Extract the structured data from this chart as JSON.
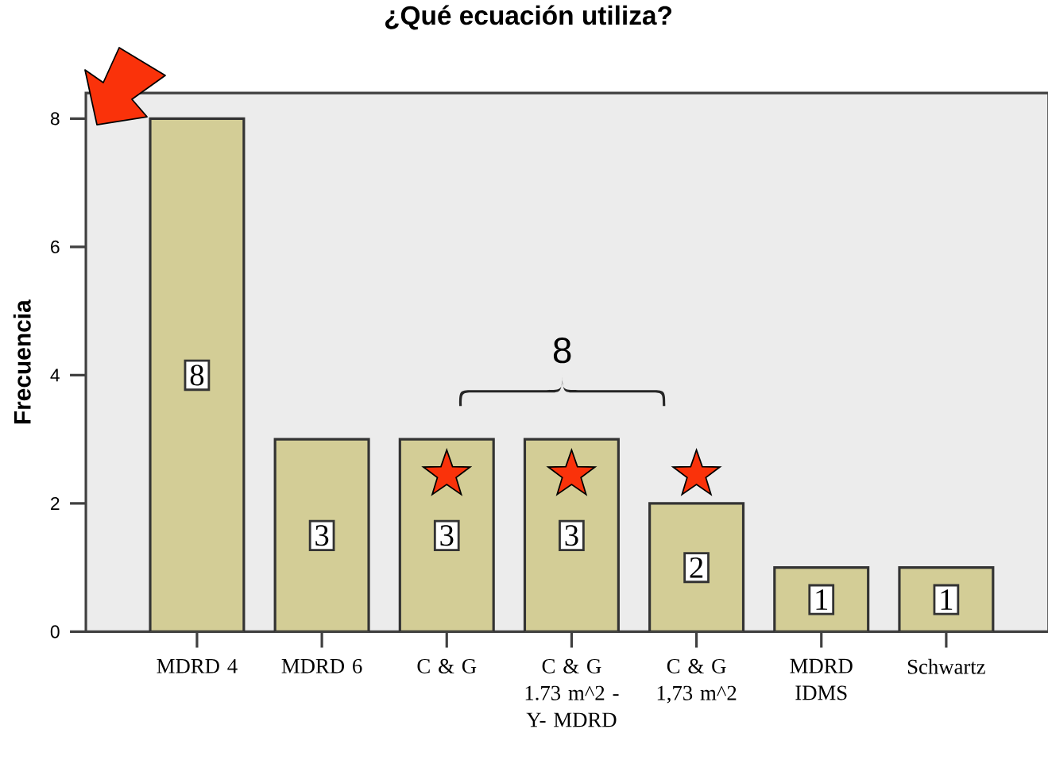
{
  "chart_data": {
    "type": "bar",
    "title": "¿Qué ecuación utiliza?",
    "ylabel": "Frecuencia",
    "categories": [
      "MDRD 4",
      "MDRD 6",
      "C & G",
      "C & G 1.73 m^2 - Y- MDRD",
      "C & G 1,73 m^2",
      "MDRD IDMS",
      "Schwartz"
    ],
    "values": [
      8,
      3,
      3,
      3,
      2,
      1,
      1
    ],
    "color": "#d3cd96",
    "ylim": [
      0,
      8.4
    ],
    "yticks": [
      0,
      2,
      4,
      6,
      8
    ],
    "data_labels": true,
    "annotations": [
      "8"
    ]
  }
}
